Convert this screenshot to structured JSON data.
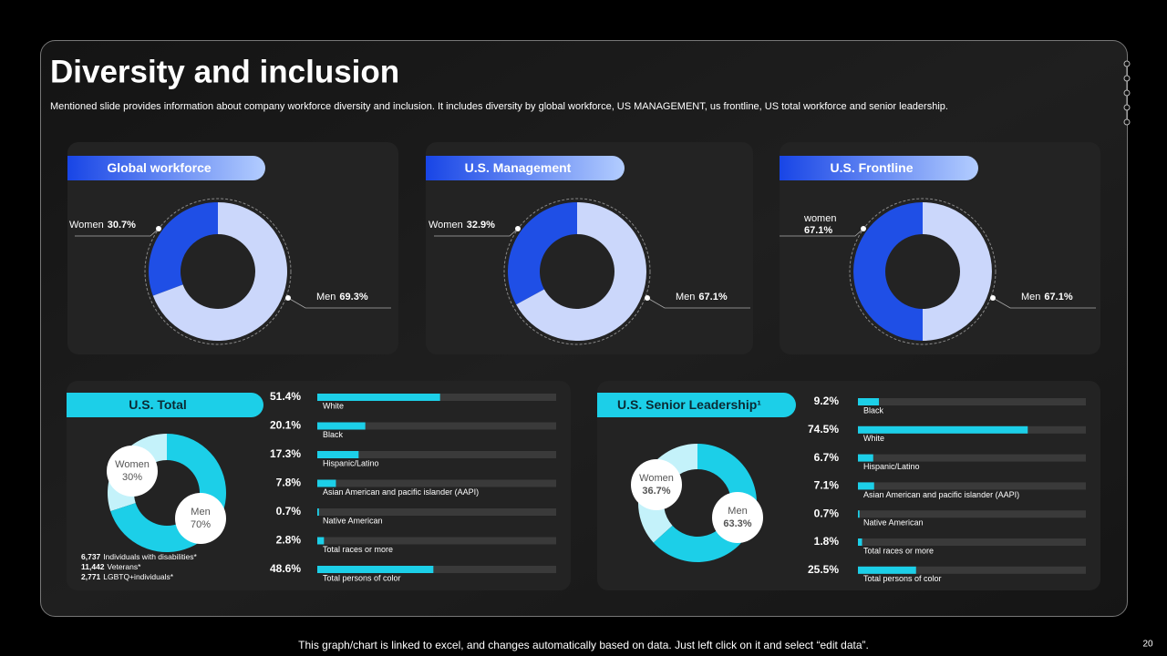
{
  "title": "Diversity and inclusion",
  "description": "Mentioned slide provides information about company workforce diversity and inclusion. It includes diversity by global workforce, US MANAGEMENT,   us frontline, US total workforce and senior leadership.",
  "footer": "This graph/chart is linked to excel, and changes automatically based on data. Just left click on it and select “edit data”.",
  "page_number": "20",
  "chart_data": [
    {
      "type": "donut",
      "title": "Global workforce",
      "categories": [
        "Women",
        "Men"
      ],
      "values": [
        30.7,
        69.3
      ],
      "value_labels": [
        "30.7%",
        "69.3%"
      ],
      "colors": [
        "#1f4fe6",
        "#cbd7fb"
      ]
    },
    {
      "type": "donut",
      "title": "U.S. Management",
      "categories": [
        "Women",
        "Men"
      ],
      "values": [
        32.9,
        67.1
      ],
      "value_labels": [
        "32.9%",
        "67.1%"
      ],
      "colors": [
        "#1f4fe6",
        "#cbd7fb"
      ]
    },
    {
      "type": "donut",
      "title": "U.S. Frontline",
      "categories": [
        "women",
        "Men"
      ],
      "values": [
        67.1,
        67.1
      ],
      "value_labels": [
        "67.1%",
        "67.1%"
      ],
      "colors": [
        "#1f4fe6",
        "#cbd7fb"
      ]
    },
    {
      "type": "donut",
      "title": "U.S. Total",
      "categories": [
        "Women",
        "Men"
      ],
      "values": [
        30,
        70
      ],
      "value_labels": [
        "30%",
        "70%"
      ],
      "colors": [
        "#c4f2fa",
        "#1ccfe8"
      ],
      "notes": [
        {
          "count": "6,737",
          "text": "Individuals with disabilities*"
        },
        {
          "count": "11,442",
          "text": "Veterans*"
        },
        {
          "count": "2,771",
          "text": "LGBTQ+individuals*"
        }
      ]
    },
    {
      "type": "bar",
      "categories": [
        "White",
        "Black",
        "Hispanic/Latino",
        "Asian American and pacific islander (AAPI)",
        "Native American",
        "Total races or more",
        "Total persons of color"
      ],
      "values": [
        51.4,
        20.1,
        17.3,
        7.8,
        0.7,
        2.8,
        48.6
      ],
      "value_labels": [
        "51.4%",
        "20.1%",
        "17.3%",
        "7.8%",
        "0.7%",
        "2.8%",
        "48.6%"
      ],
      "xlim": [
        0,
        100
      ],
      "color": "#1ccfe8"
    },
    {
      "type": "donut",
      "title": "U.S. Senior Leadership¹",
      "categories": [
        "Women",
        "Men"
      ],
      "values": [
        36.7,
        63.3
      ],
      "value_labels": [
        "36.7%",
        "63.3%"
      ],
      "colors": [
        "#c4f2fa",
        "#1ccfe8"
      ]
    },
    {
      "type": "bar",
      "categories": [
        "Black",
        "White",
        "Hispanic/Latino",
        "Asian American and pacific islander (AAPI)",
        "Native American",
        "Total races or more",
        "Total persons of color"
      ],
      "values": [
        9.2,
        74.5,
        6.7,
        7.1,
        0.7,
        1.8,
        25.5
      ],
      "value_labels": [
        "9.2%",
        "74.5%",
        "6.7%",
        "7.1%",
        "0.7%",
        "1.8%",
        "25.5%"
      ],
      "xlim": [
        0,
        100
      ],
      "color": "#1ccfe8"
    }
  ]
}
